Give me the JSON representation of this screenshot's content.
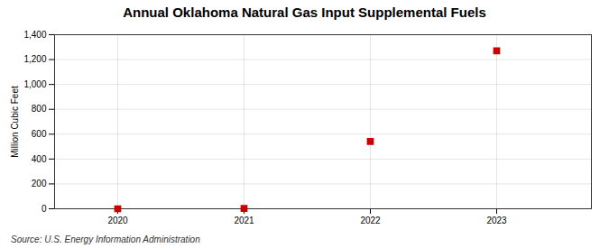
{
  "chart_data": {
    "type": "scatter",
    "title": "Annual Oklahoma Natural Gas Input Supplemental Fuels",
    "ylabel": "Million Cubic Feet",
    "annotations": [
      "Source: U.S. Energy Information Administration"
    ],
    "x": [
      2020,
      2021,
      2022,
      2023
    ],
    "values": [
      0,
      2,
      541,
      1271
    ],
    "color": "#cc0000",
    "marker": "square",
    "xlim": [
      2019.5,
      2023.75
    ],
    "xticks": [
      2020,
      2021,
      2022,
      2023
    ],
    "ylim": [
      0,
      1400
    ],
    "yticks": [
      0,
      200,
      400,
      600,
      800,
      {
        "value": 1000,
        "label": "1,000"
      },
      {
        "value": 1200,
        "label": "1,200"
      },
      {
        "value": 1400,
        "label": "1,400"
      }
    ],
    "grid": true
  }
}
